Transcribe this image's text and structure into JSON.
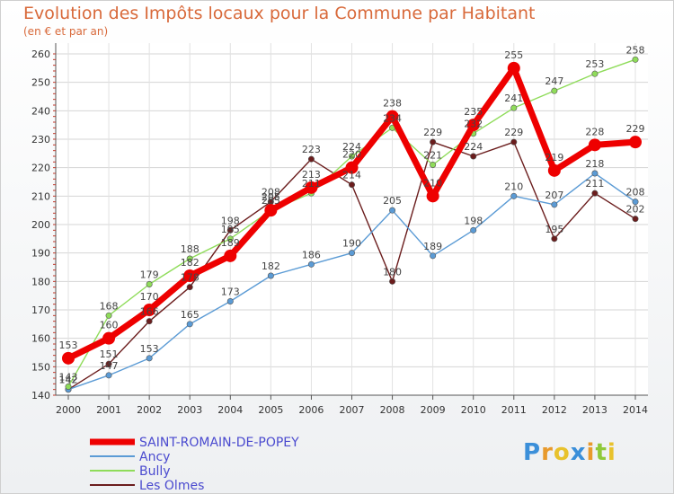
{
  "chart_data": {
    "type": "line",
    "title": "Evolution des Impôts locaux pour la Commune par Habitant",
    "subtitle": "(en € et par an)",
    "xlabel": "",
    "ylabel": "",
    "ylim": [
      140,
      260
    ],
    "yticks": [
      140,
      150,
      160,
      170,
      180,
      190,
      200,
      210,
      220,
      230,
      240,
      250,
      260
    ],
    "x": [
      "2000",
      "2001",
      "2002",
      "2003",
      "2004",
      "2005",
      "2006",
      "2007",
      "2008",
      "2009",
      "2010",
      "2011",
      "2012",
      "2013",
      "2014"
    ],
    "grid": true,
    "legend_position": "bottom-left",
    "series": [
      {
        "name": "Les Olmes",
        "color": "#6b1d1d",
        "values": [
          142,
          151,
          166,
          178,
          198,
          208,
          223,
          214,
          180,
          229,
          224,
          229,
          195,
          211,
          202
        ]
      },
      {
        "name": "Ancy",
        "color": "#5b9bd5",
        "values": [
          142,
          147,
          153,
          165,
          173,
          182,
          186,
          190,
          205,
          189,
          198,
          210,
          207,
          218,
          208
        ]
      },
      {
        "name": "Bully",
        "color": "#8fdc5a",
        "values": [
          143,
          168,
          179,
          188,
          195,
          205,
          211,
          224,
          234,
          221,
          232,
          241,
          247,
          253,
          258
        ]
      },
      {
        "name": "SAINT-ROMAIN-DE-POPEY",
        "color": "#ee0000",
        "values": [
          153,
          160,
          170,
          182,
          189,
          205,
          213,
          220,
          238,
          210,
          235,
          255,
          219,
          228,
          229
        ]
      }
    ],
    "legend_order": [
      "SAINT-ROMAIN-DE-POPEY",
      "Ancy",
      "Bully",
      "Les Olmes"
    ]
  },
  "logo": {
    "letters": [
      "P",
      "r",
      "o",
      "x",
      "i",
      "t",
      "i"
    ],
    "colors": [
      "#3b8fd9",
      "#e89a2c",
      "#e8c22c",
      "#3b8fd9",
      "#e89a2c",
      "#8fc93a",
      "#e8c22c"
    ]
  }
}
